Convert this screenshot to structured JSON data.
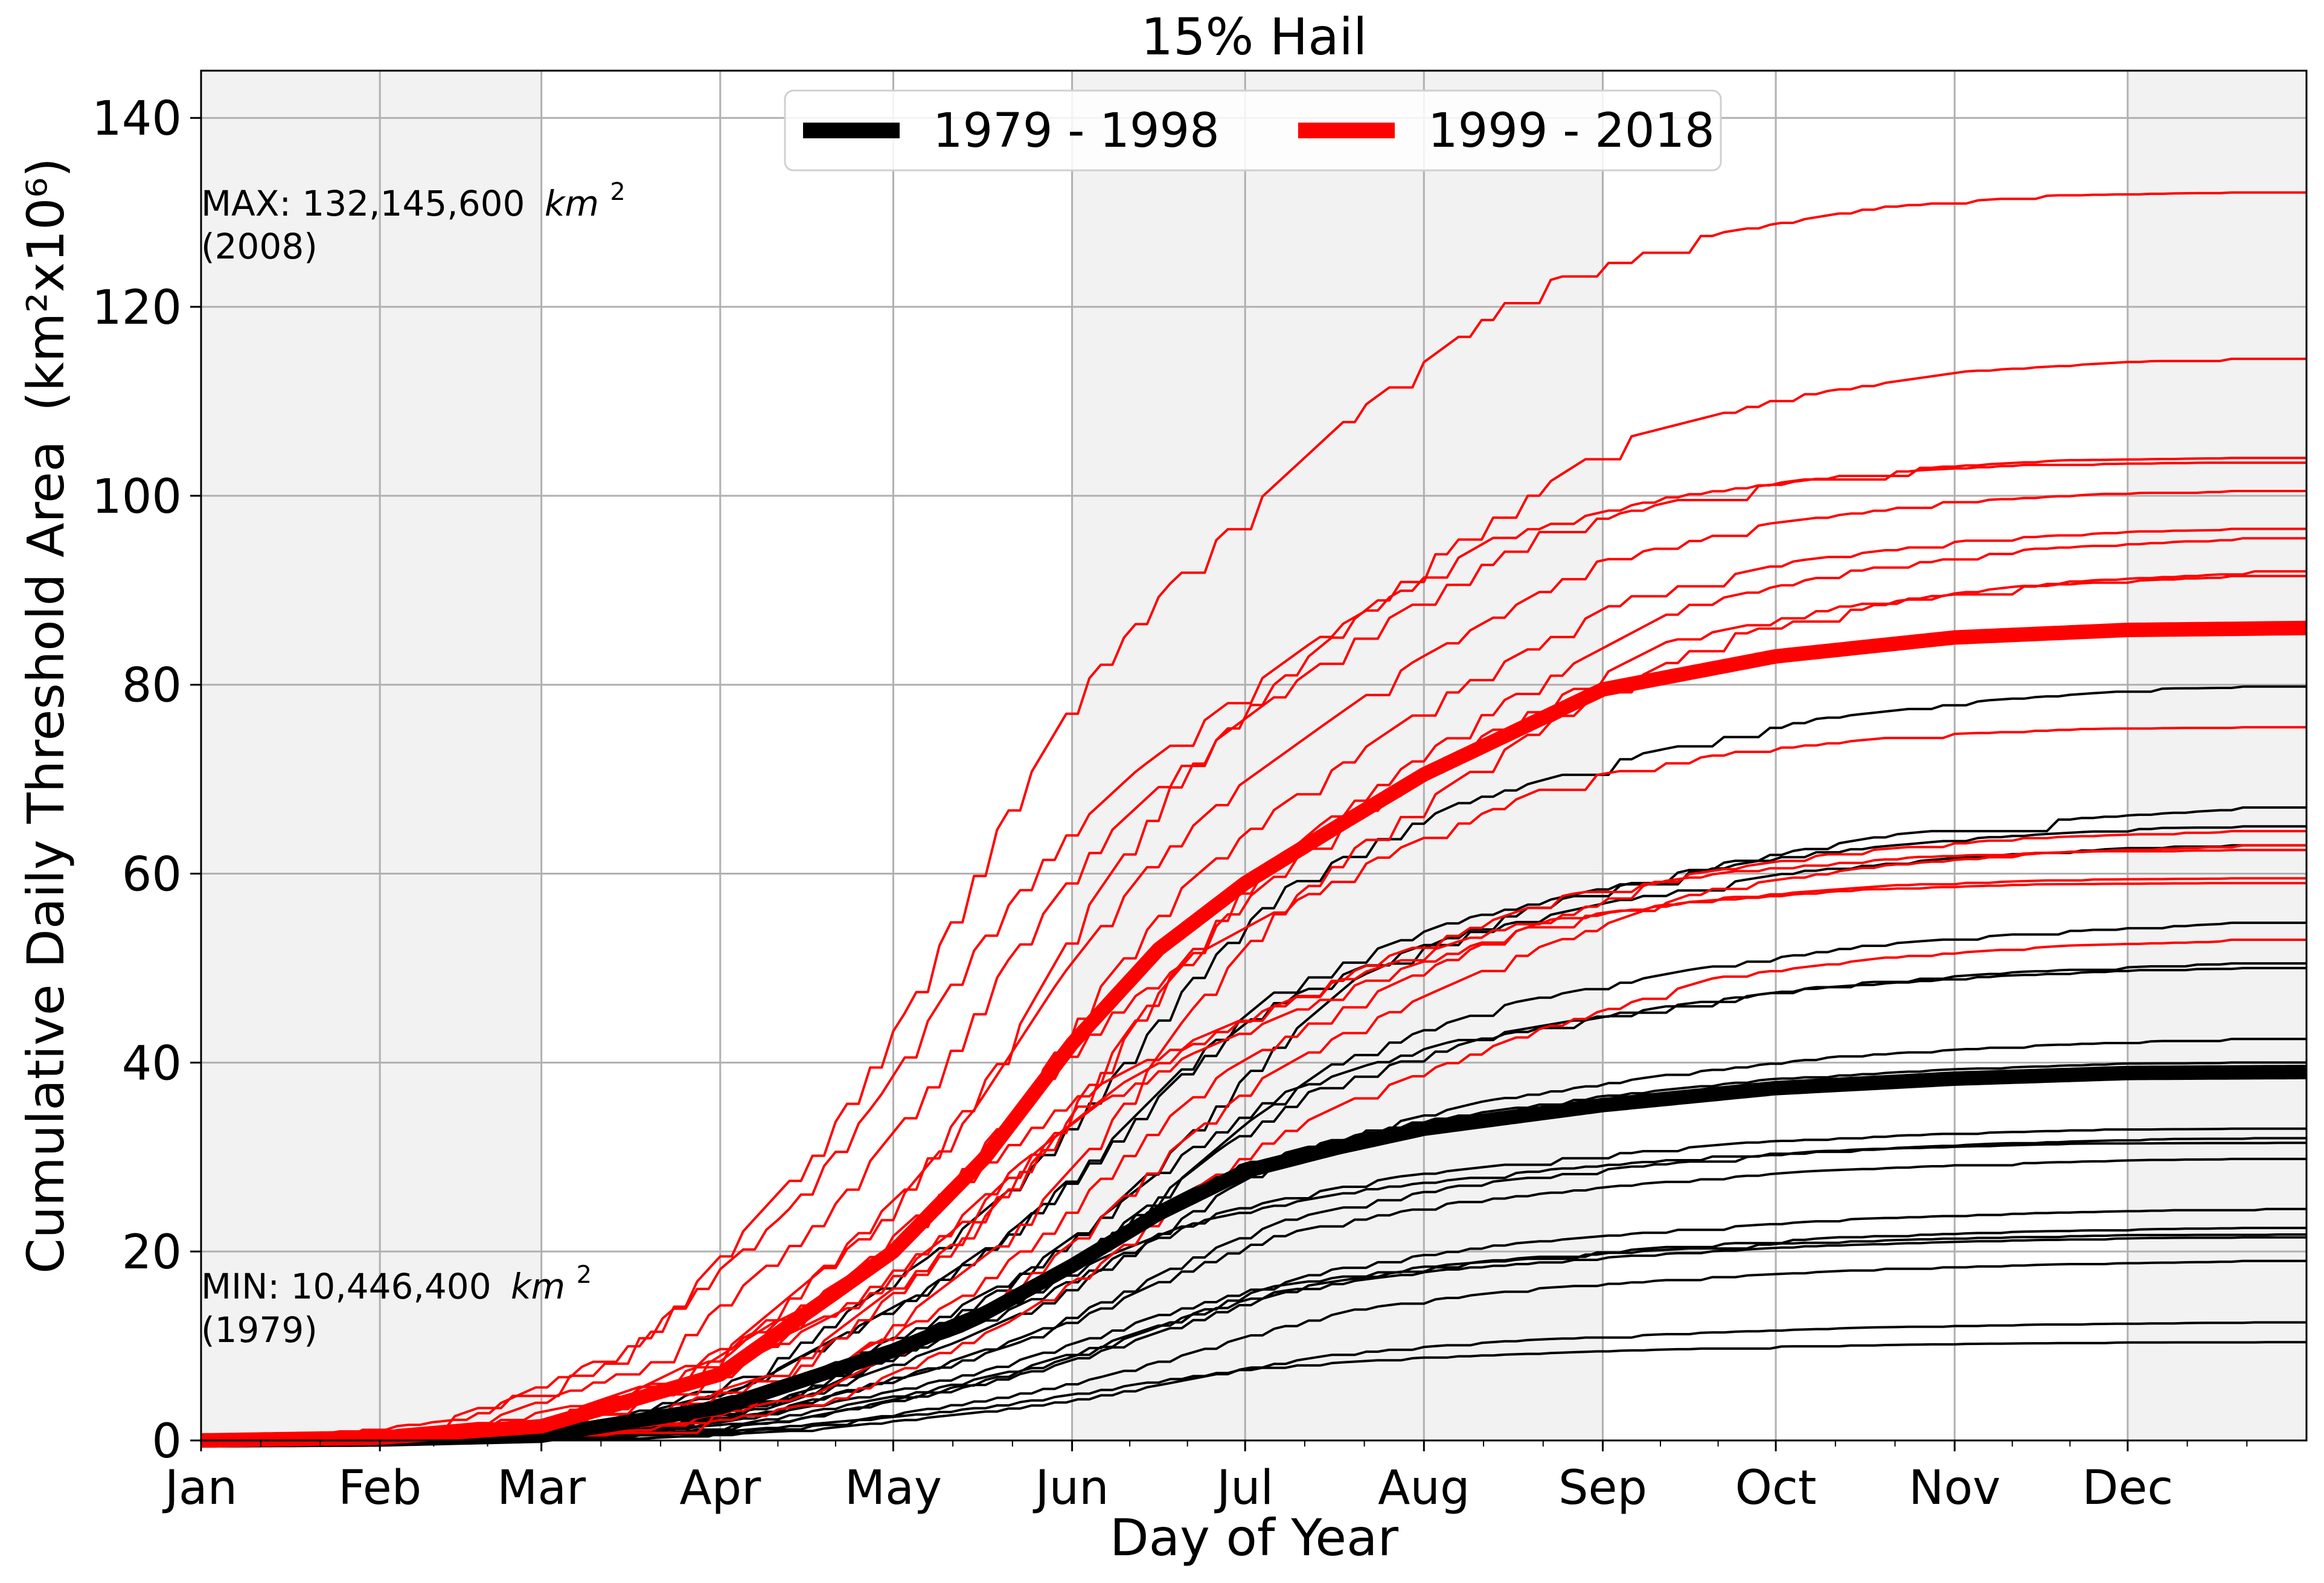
{
  "chart_data": {
    "type": "line",
    "title": "15% Hail",
    "xlabel": "Day of Year",
    "ylabel": "Cumulative Daily Threshold Area",
    "ylabel_unit": "(km²x10⁶)",
    "xlim": [
      1,
      366
    ],
    "ylim": [
      0,
      145
    ],
    "x_tick_labels": [
      "Jan",
      "Feb",
      "Mar",
      "Apr",
      "May",
      "Jun",
      "Jul",
      "Aug",
      "Sep",
      "Oct",
      "Nov",
      "Dec"
    ],
    "x_tick_days": [
      1,
      32,
      60,
      91,
      121,
      152,
      182,
      213,
      244,
      274,
      305,
      335
    ],
    "y_ticks": [
      0,
      20,
      40,
      60,
      80,
      100,
      120,
      140
    ],
    "grid": true,
    "shaded_months": [
      "Jan",
      "Feb",
      "Jun",
      "Jul",
      "Aug",
      "Dec"
    ],
    "legend": {
      "placement": "top-center",
      "entries": [
        {
          "label": "1979 - 1998",
          "color": "#000000"
        },
        {
          "label": "1999 - 2018",
          "color": "#ff0000"
        }
      ]
    },
    "annotations": {
      "max": {
        "line1_prefix": "MAX: 132,145,600",
        "unit": "km",
        "sup": "2",
        "line2": "(2008)"
      },
      "min": {
        "line1_prefix": "MIN: 10,446,400",
        "unit": "km",
        "sup": "2",
        "line2": "(1979)"
      }
    },
    "series": [
      {
        "name": "1979 - 1998",
        "color": "#000000",
        "mean": [
          [
            1,
            0
          ],
          [
            32,
            0.1
          ],
          [
            60,
            0.5
          ],
          [
            91,
            3.5
          ],
          [
            121,
            9.5
          ],
          [
            137,
            13.5
          ],
          [
            152,
            18.5
          ],
          [
            167,
            24
          ],
          [
            182,
            28.5
          ],
          [
            198,
            31
          ],
          [
            213,
            33
          ],
          [
            244,
            35.5
          ],
          [
            274,
            37.3
          ],
          [
            305,
            38.3
          ],
          [
            335,
            38.9
          ],
          [
            366,
            39
          ]
        ],
        "members_final": [
          79.8,
          67,
          65,
          63,
          54.8,
          50.5,
          50,
          42.5,
          40,
          33,
          32,
          31.5,
          29.8,
          24.5,
          22.5,
          21.8,
          21.5,
          19,
          12.5,
          10.4
        ]
      },
      {
        "name": "1999 - 2018",
        "color": "#ff0000",
        "mean": [
          [
            1,
            0
          ],
          [
            32,
            0.3
          ],
          [
            60,
            1.5
          ],
          [
            91,
            7
          ],
          [
            121,
            20
          ],
          [
            137,
            30
          ],
          [
            152,
            42
          ],
          [
            167,
            52
          ],
          [
            182,
            59
          ],
          [
            198,
            65
          ],
          [
            213,
            70.5
          ],
          [
            244,
            79.5
          ],
          [
            274,
            83
          ],
          [
            305,
            85
          ],
          [
            335,
            85.8
          ],
          [
            366,
            86
          ]
        ],
        "members_final": [
          132.1,
          114.5,
          104,
          103.5,
          100.5,
          96.5,
          95.5,
          92,
          91.5,
          75.5,
          64.5,
          63,
          62.5,
          59.5,
          59,
          53
        ]
      }
    ]
  }
}
